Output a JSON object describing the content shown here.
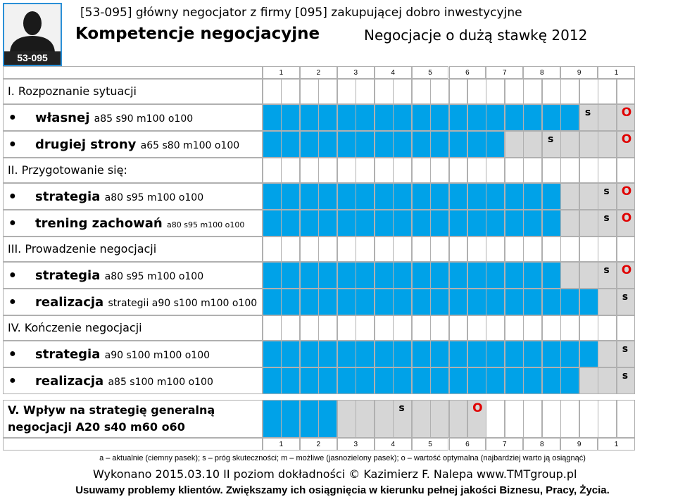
{
  "header": {
    "code": "53-095",
    "top_line": "[53-095] główny negocjator z firmy [095]  zakupującej dobro inwestycyjne",
    "title": "Kompetencje negocjacyjne",
    "subtitle": "Negocjacje o dużą stawkę 2012"
  },
  "icons": {
    "avatar": "person-silhouette-icon"
  },
  "colors": {
    "actual": "#00a2e8",
    "possible": "#d6d6d6",
    "optimal_mark": "#e00000",
    "avatar_border": "#2a8fd6"
  },
  "scale_labels": [
    "1",
    "2",
    "3",
    "4",
    "5",
    "6",
    "7",
    "8",
    "9",
    "1"
  ],
  "chart_data": {
    "type": "bar",
    "orientation": "horizontal",
    "scale": [
      0,
      100
    ],
    "sections": [
      {
        "title": "I. Rozpoznanie  sytuacji",
        "items": [
          {
            "name": "własnej",
            "params": "a85 s90 m100  o100",
            "a": 85,
            "s": 90,
            "m": 100,
            "o": 100
          },
          {
            "name": "drugiej strony",
            "params": "a65  s80  m100  o100",
            "a": 65,
            "s": 80,
            "m": 100,
            "o": 100
          }
        ]
      },
      {
        "title": "II. Przygotowanie  się:",
        "items": [
          {
            "name": "strategia",
            "params": "a80 s95  m100 o100",
            "a": 80,
            "s": 95,
            "m": 100,
            "o": 100
          },
          {
            "name": "trening zachowań",
            "params": "a80 s95  m100  o100",
            "a": 80,
            "s": 95,
            "m": 100,
            "o": 100
          }
        ]
      },
      {
        "title": "III. Prowadzenie  negocjacji",
        "items": [
          {
            "name": "strategia",
            "params": "a80 s95  m100 o100",
            "a": 80,
            "s": 95,
            "m": 100,
            "o": 100
          },
          {
            "name": "realizacja",
            "params": "strategii a90 s100 m100 o100",
            "a": 90,
            "s": 100,
            "m": 100,
            "o": 100
          }
        ]
      },
      {
        "title": "IV. Kończenie  negocjacji",
        "items": [
          {
            "name": "strategia",
            "params": "a90 s100 m100  o100",
            "a": 90,
            "s": 100,
            "m": 100,
            "o": 100
          },
          {
            "name": "realizacja",
            "params": " a85 s100 m100 o100",
            "a": 85,
            "s": 100,
            "m": 100,
            "o": 100
          }
        ]
      }
    ],
    "final": {
      "line1": "V. Wpływ na strategię  generalną",
      "line2": "negocjacji   A20  s40  m60 o60",
      "a": 20,
      "s": 40,
      "m": 60,
      "o": 60
    },
    "marks": {
      "s": "s",
      "o": "O"
    }
  },
  "footer": {
    "legend": "a – aktualnie (ciemny pasek);  s – próg skuteczności; m – możliwe (jasnozielony pasek); o – wartość optymalna (najbardziej warto ją osiągnąć)",
    "made": "Wykonano 2015.03.10  II poziom dokładności    © Kazimierz F. Nalepa    www.TMTgroup.pl",
    "slogan": "Usuwamy problemy klientów. Zwiększamy ich osiągnięcia w kierunku pełnej jakości Biznesu, Pracy, Życia."
  }
}
